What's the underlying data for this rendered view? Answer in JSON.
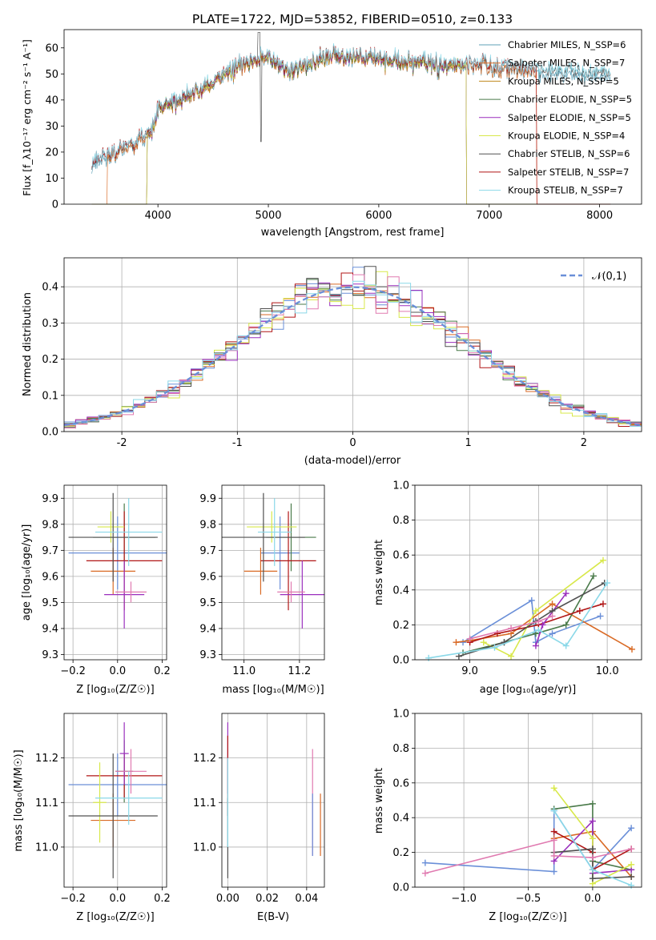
{
  "figure": {
    "title": "PLATE=1722, MJD=53852, FIBERID=0510, z=0.133"
  },
  "colors": [
    "#5fa0b7",
    "#d96a25",
    "#c08a1e",
    "#4a7a4a",
    "#9a2fbd",
    "#d8e84a",
    "#505050",
    "#b01515",
    "#8ad8e8"
  ],
  "chart_data": [
    {
      "id": "spectrum",
      "type": "line",
      "xlabel": "wavelength [Angstrom, rest frame]",
      "ylabel": "Flux [f_λ10⁻¹⁷ erg cm⁻² s⁻¹ A⁻¹]",
      "xlim": [
        3150,
        8380
      ],
      "ylim": [
        0,
        67
      ],
      "xticks": [
        4000,
        5000,
        6000,
        7000,
        8000
      ],
      "yticks": [
        0,
        10,
        20,
        30,
        40,
        50,
        60
      ],
      "grid": false,
      "legend_position": "upper-right",
      "series": [
        {
          "name": "Chabrier MILES, N_SSP=6",
          "color": "#5fa0b7",
          "range": [
            3400,
            8100
          ]
        },
        {
          "name": "Salpeter MILES, N_SSP=7",
          "color": "#d96a25",
          "range": [
            3540,
            7430
          ]
        },
        {
          "name": "Kroupa MILES, N_SSP=5",
          "color": "#c08a1e",
          "range": [
            3900,
            6790
          ]
        },
        {
          "name": "Chabrier ELODIE, N_SSP=5",
          "color": "#4a7a4a",
          "range": [
            3900,
            6790
          ]
        },
        {
          "name": "Salpeter ELODIE, N_SSP=5",
          "color": "#9a2fbd",
          "range": [
            3900,
            6790
          ]
        },
        {
          "name": "Kroupa ELODIE, N_SSP=4",
          "color": "#d8e84a",
          "range": [
            3900,
            6790
          ]
        },
        {
          "name": "Chabrier STELIB, N_SSP=6",
          "color": "#505050",
          "range": [
            3400,
            8100
          ]
        },
        {
          "name": "Salpeter STELIB, N_SSP=7",
          "color": "#b01515",
          "range": [
            3400,
            7430
          ]
        },
        {
          "name": "Kroupa STELIB, N_SSP=7",
          "color": "#8ad8e8",
          "range": [
            3400,
            8100
          ]
        }
      ],
      "continuum": [
        [
          3400,
          16
        ],
        [
          3600,
          19
        ],
        [
          3800,
          24
        ],
        [
          3950,
          28
        ],
        [
          4000,
          37
        ],
        [
          4200,
          40
        ],
        [
          4400,
          44
        ],
        [
          4600,
          50
        ],
        [
          4800,
          54
        ],
        [
          5000,
          56
        ],
        [
          5200,
          51
        ],
        [
          5500,
          56
        ],
        [
          5800,
          57
        ],
        [
          6200,
          55
        ],
        [
          6600,
          53
        ],
        [
          7000,
          53
        ],
        [
          7400,
          51
        ],
        [
          7800,
          50
        ],
        [
          8100,
          50
        ]
      ]
    },
    {
      "id": "residuals",
      "type": "histogram",
      "xlabel": "(data-model)/error",
      "ylabel": "Normed distribution",
      "xlim": [
        -2.5,
        2.5
      ],
      "ylim": [
        0,
        0.48
      ],
      "xticks": [
        -2,
        -1,
        0,
        1,
        2
      ],
      "yticks": [
        0.0,
        0.1,
        0.2,
        0.3,
        0.4
      ],
      "grid": true,
      "legend": "𝒩(0,1)",
      "legend_position": "upper-right",
      "reference_color": "#6a8fd8",
      "bin_width": 0.1,
      "series_colors": [
        "#6a8fd8",
        "#d96a25",
        "#4a7a4a",
        "#b01515",
        "#9a2fbd",
        "#d8e84a",
        "#505050",
        "#e07ab0",
        "#8ad8e8"
      ]
    },
    {
      "id": "age-vs-Z",
      "type": "errorbar",
      "xlabel": "Z [log₁₀(Z/Z☉)]",
      "ylabel": "age  [log₁₀(age/yr)]",
      "xlim": [
        -0.24,
        0.22
      ],
      "ylim": [
        9.28,
        9.95
      ],
      "xticks": [
        -0.2,
        0.0,
        0.2
      ],
      "xticklabels": [
        "−0.2",
        "0.0",
        "0.2"
      ],
      "yticks": [
        9.3,
        9.4,
        9.5,
        9.6,
        9.7,
        9.8,
        9.9
      ],
      "grid": true,
      "points": [
        {
          "x": 0.0,
          "y": 9.69,
          "xerr": 0.22,
          "yerr": 0.14,
          "color": "#6a8fd8"
        },
        {
          "x": -0.02,
          "y": 9.62,
          "xerr": 0.1,
          "yerr": 0.09,
          "color": "#d96a25"
        },
        {
          "x": 0.03,
          "y": 9.75,
          "xerr": 0.14,
          "yerr": 0.13,
          "color": "#4a7a4a"
        },
        {
          "x": 0.03,
          "y": 9.66,
          "xerr": 0.17,
          "yerr": 0.19,
          "color": "#b01515"
        },
        {
          "x": 0.03,
          "y": 9.53,
          "xerr": 0.09,
          "yerr": 0.13,
          "color": "#9a2fbd"
        },
        {
          "x": -0.03,
          "y": 9.79,
          "xerr": 0.06,
          "yerr": 0.06,
          "color": "#d8e84a"
        },
        {
          "x": -0.02,
          "y": 9.75,
          "xerr": 0.2,
          "yerr": 0.17,
          "color": "#505050"
        },
        {
          "x": 0.06,
          "y": 9.54,
          "xerr": 0.07,
          "yerr": 0.04,
          "color": "#e07ab0"
        },
        {
          "x": 0.05,
          "y": 9.77,
          "xerr": 0.15,
          "yerr": 0.13,
          "color": "#8ad8e8"
        }
      ]
    },
    {
      "id": "age-vs-mass",
      "type": "errorbar",
      "xlabel": "mass [log₁₀(M/M☉)]",
      "ylabel": "",
      "xlim": [
        10.92,
        11.29
      ],
      "ylim": [
        9.28,
        9.95
      ],
      "xticks": [
        11.0,
        11.2
      ],
      "xticklabels": [
        "11.0",
        "11.2"
      ],
      "yticks": [
        9.3,
        9.4,
        9.5,
        9.6,
        9.7,
        9.8,
        9.9
      ],
      "grid": true,
      "points": [
        {
          "x": 11.13,
          "y": 9.69,
          "xerr": 0.07,
          "yerr": 0.14,
          "color": "#6a8fd8"
        },
        {
          "x": 11.06,
          "y": 9.62,
          "xerr": 0.06,
          "yerr": 0.09,
          "color": "#d96a25"
        },
        {
          "x": 11.17,
          "y": 9.75,
          "xerr": 0.09,
          "yerr": 0.13,
          "color": "#4a7a4a"
        },
        {
          "x": 11.16,
          "y": 9.66,
          "xerr": 0.1,
          "yerr": 0.19,
          "color": "#b01515"
        },
        {
          "x": 11.21,
          "y": 9.53,
          "xerr": 0.08,
          "yerr": 0.13,
          "color": "#9a2fbd"
        },
        {
          "x": 11.1,
          "y": 9.79,
          "xerr": 0.09,
          "yerr": 0.06,
          "color": "#d8e84a"
        },
        {
          "x": 11.07,
          "y": 9.75,
          "xerr": 0.15,
          "yerr": 0.17,
          "color": "#505050"
        },
        {
          "x": 11.17,
          "y": 9.54,
          "xerr": 0.05,
          "yerr": 0.04,
          "color": "#e07ab0"
        },
        {
          "x": 11.11,
          "y": 9.77,
          "xerr": 0.06,
          "yerr": 0.13,
          "color": "#8ad8e8"
        }
      ]
    },
    {
      "id": "weight-vs-age",
      "type": "line",
      "xlabel": "age  [log₁₀(age/yr)]",
      "ylabel": "mass weight",
      "xlim": [
        8.6,
        10.25
      ],
      "ylim": [
        0,
        1.0
      ],
      "xticks": [
        9.0,
        9.5,
        10.0
      ],
      "xticklabels": [
        "9.0",
        "9.5",
        "10.0"
      ],
      "yticks": [
        0.0,
        0.2,
        0.4,
        0.6,
        0.8,
        1.0
      ],
      "grid": true,
      "series": [
        {
          "color": "#6a8fd8",
          "points": [
            [
              8.95,
              0.1
            ],
            [
              9.45,
              0.34
            ],
            [
              9.48,
              0.1
            ],
            [
              9.6,
              0.15
            ],
            [
              9.95,
              0.25
            ]
          ]
        },
        {
          "color": "#d96a25",
          "points": [
            [
              8.9,
              0.1
            ],
            [
              9.0,
              0.11
            ],
            [
              9.3,
              0.15
            ],
            [
              9.6,
              0.32
            ],
            [
              10.18,
              0.06
            ]
          ]
        },
        {
          "color": "#4a7a4a",
          "points": [
            [
              8.95,
              0.04
            ],
            [
              9.25,
              0.1
            ],
            [
              9.48,
              0.15
            ],
            [
              9.7,
              0.2
            ],
            [
              9.9,
              0.48
            ]
          ]
        },
        {
          "color": "#b01515",
          "points": [
            [
              9.0,
              0.1
            ],
            [
              9.2,
              0.15
            ],
            [
              9.5,
              0.2
            ],
            [
              9.8,
              0.28
            ],
            [
              9.97,
              0.32
            ]
          ]
        },
        {
          "color": "#9a2fbd",
          "points": [
            [
              9.48,
              0.08
            ],
            [
              9.53,
              0.2
            ],
            [
              9.7,
              0.38
            ]
          ]
        },
        {
          "color": "#d8e84a",
          "points": [
            [
              9.1,
              0.1
            ],
            [
              9.3,
              0.02
            ],
            [
              9.48,
              0.28
            ],
            [
              9.97,
              0.57
            ]
          ]
        },
        {
          "color": "#505050",
          "points": [
            [
              8.92,
              0.02
            ],
            [
              9.25,
              0.1
            ],
            [
              9.48,
              0.22
            ],
            [
              9.6,
              0.28
            ],
            [
              9.98,
              0.44
            ]
          ]
        },
        {
          "color": "#e07ab0",
          "points": [
            [
              9.0,
              0.12
            ],
            [
              9.3,
              0.18
            ],
            [
              9.5,
              0.22
            ],
            [
              9.6,
              0.25
            ]
          ]
        },
        {
          "color": "#8ad8e8",
          "points": [
            [
              8.7,
              0.01
            ],
            [
              9.18,
              0.07
            ],
            [
              9.5,
              0.17
            ],
            [
              9.7,
              0.08
            ],
            [
              10.0,
              0.44
            ]
          ]
        }
      ]
    },
    {
      "id": "mass-vs-Z",
      "type": "errorbar",
      "xlabel": "Z [log₁₀(Z/Z☉)]",
      "ylabel": "mass [log₁₀(M/M☉)]",
      "xlim": [
        -0.24,
        0.22
      ],
      "ylim": [
        10.91,
        11.3
      ],
      "xticks": [
        -0.2,
        0.0,
        0.2
      ],
      "xticklabels": [
        "−0.2",
        "0.0",
        "0.2"
      ],
      "yticks": [
        11.0,
        11.1,
        11.2
      ],
      "yticklabels": [
        "11.0",
        "11.1",
        "11.2"
      ],
      "grid": true,
      "points": [
        {
          "x": 0.0,
          "y": 11.14,
          "xerr": 0.22,
          "yerr": 0.07,
          "color": "#6a8fd8"
        },
        {
          "x": -0.02,
          "y": 11.06,
          "xerr": 0.1,
          "yerr": 0.06,
          "color": "#d96a25"
        },
        {
          "x": 0.03,
          "y": 11.17,
          "xerr": 0.04,
          "yerr": 0.07,
          "color": "#4a7a4a"
        },
        {
          "x": 0.03,
          "y": 11.16,
          "xerr": 0.17,
          "yerr": 0.05,
          "color": "#b01515"
        },
        {
          "x": 0.03,
          "y": 11.21,
          "xerr": 0.02,
          "yerr": 0.07,
          "color": "#9a2fbd"
        },
        {
          "x": -0.08,
          "y": 11.1,
          "xerr": 0.03,
          "yerr": 0.09,
          "color": "#d8e84a"
        },
        {
          "x": -0.02,
          "y": 11.07,
          "xerr": 0.2,
          "yerr": 0.14,
          "color": "#505050"
        },
        {
          "x": 0.06,
          "y": 11.17,
          "xerr": 0.07,
          "yerr": 0.05,
          "color": "#e07ab0"
        },
        {
          "x": 0.05,
          "y": 11.11,
          "xerr": 0.15,
          "yerr": 0.06,
          "color": "#8ad8e8"
        }
      ]
    },
    {
      "id": "mass-vs-EBV",
      "type": "errorbar",
      "xlabel": "E(B-V)",
      "ylabel": "",
      "xlim": [
        -0.003,
        0.049
      ],
      "ylim": [
        10.91,
        11.3
      ],
      "xticks": [
        0.0,
        0.02,
        0.04
      ],
      "xticklabels": [
        "0.00",
        "0.02",
        "0.04"
      ],
      "yticks": [
        11.0,
        11.1,
        11.2
      ],
      "yticklabels": [
        "11.0",
        "11.1",
        "11.2"
      ],
      "grid": true,
      "points": [
        {
          "x": 0.0,
          "y": 11.2,
          "xerr": 0.0,
          "yerr": 0.08,
          "color": "#9a2fbd"
        },
        {
          "x": 0.0,
          "y": 11.16,
          "xerr": 0.0,
          "yerr": 0.09,
          "color": "#b01515"
        },
        {
          "x": 0.0,
          "y": 11.02,
          "xerr": 0.0,
          "yerr": 0.09,
          "color": "#505050"
        },
        {
          "x": 0.0,
          "y": 11.1,
          "xerr": 0.0,
          "yerr": 0.1,
          "color": "#8ad8e8"
        },
        {
          "x": 0.043,
          "y": 11.1,
          "xerr": 0.0,
          "yerr": 0.12,
          "color": "#e07ab0"
        },
        {
          "x": 0.043,
          "y": 11.05,
          "xerr": 0.0,
          "yerr": 0.07,
          "color": "#6a8fd8"
        },
        {
          "x": 0.047,
          "y": 11.05,
          "xerr": 0.0,
          "yerr": 0.07,
          "color": "#d96a25"
        }
      ]
    },
    {
      "id": "weight-vs-Z",
      "type": "line",
      "xlabel": "Z [log₁₀(Z/Z☉)]",
      "ylabel": "mass weight",
      "xlim": [
        -1.38,
        0.38
      ],
      "ylim": [
        0,
        1.0
      ],
      "xticks": [
        -1.0,
        -0.5,
        0.0
      ],
      "xticklabels": [
        "−1.0",
        "−0.5",
        "0.0"
      ],
      "yticks": [
        0.0,
        0.2,
        0.4,
        0.6,
        0.8,
        1.0
      ],
      "grid": true,
      "series": [
        {
          "color": "#6a8fd8",
          "points": [
            [
              -1.3,
              0.14
            ],
            [
              -0.3,
              0.09
            ],
            [
              -0.3,
              0.44
            ],
            [
              0.0,
              0.1
            ],
            [
              0.3,
              0.34
            ]
          ]
        },
        {
          "color": "#d96a25",
          "points": [
            [
              -0.3,
              0.28
            ],
            [
              0.0,
              0.32
            ],
            [
              0.3,
              0.06
            ]
          ]
        },
        {
          "color": "#4a7a4a",
          "points": [
            [
              -0.3,
              0.45
            ],
            [
              0.0,
              0.48
            ],
            [
              0.0,
              0.15
            ],
            [
              0.3,
              0.1
            ]
          ]
        },
        {
          "color": "#b01515",
          "points": [
            [
              -0.3,
              0.32
            ],
            [
              0.0,
              0.2
            ],
            [
              0.0,
              0.1
            ],
            [
              0.3,
              0.22
            ]
          ]
        },
        {
          "color": "#9a2fbd",
          "points": [
            [
              -0.3,
              0.15
            ],
            [
              0.0,
              0.38
            ],
            [
              0.0,
              0.08
            ],
            [
              0.3,
              0.1
            ]
          ]
        },
        {
          "color": "#d8e84a",
          "points": [
            [
              -0.3,
              0.57
            ],
            [
              0.0,
              0.28
            ],
            [
              0.0,
              0.02
            ],
            [
              0.3,
              0.13
            ]
          ]
        },
        {
          "color": "#505050",
          "points": [
            [
              -0.3,
              0.2
            ],
            [
              0.0,
              0.22
            ],
            [
              0.0,
              0.05
            ],
            [
              0.3,
              0.06
            ]
          ]
        },
        {
          "color": "#e07ab0",
          "points": [
            [
              -1.3,
              0.08
            ],
            [
              -0.3,
              0.27
            ],
            [
              -0.3,
              0.18
            ],
            [
              0.0,
              0.17
            ],
            [
              0.3,
              0.22
            ]
          ]
        },
        {
          "color": "#8ad8e8",
          "points": [
            [
              -0.3,
              0.44
            ],
            [
              0.0,
              0.1
            ],
            [
              0.3,
              0.01
            ]
          ]
        }
      ]
    }
  ]
}
